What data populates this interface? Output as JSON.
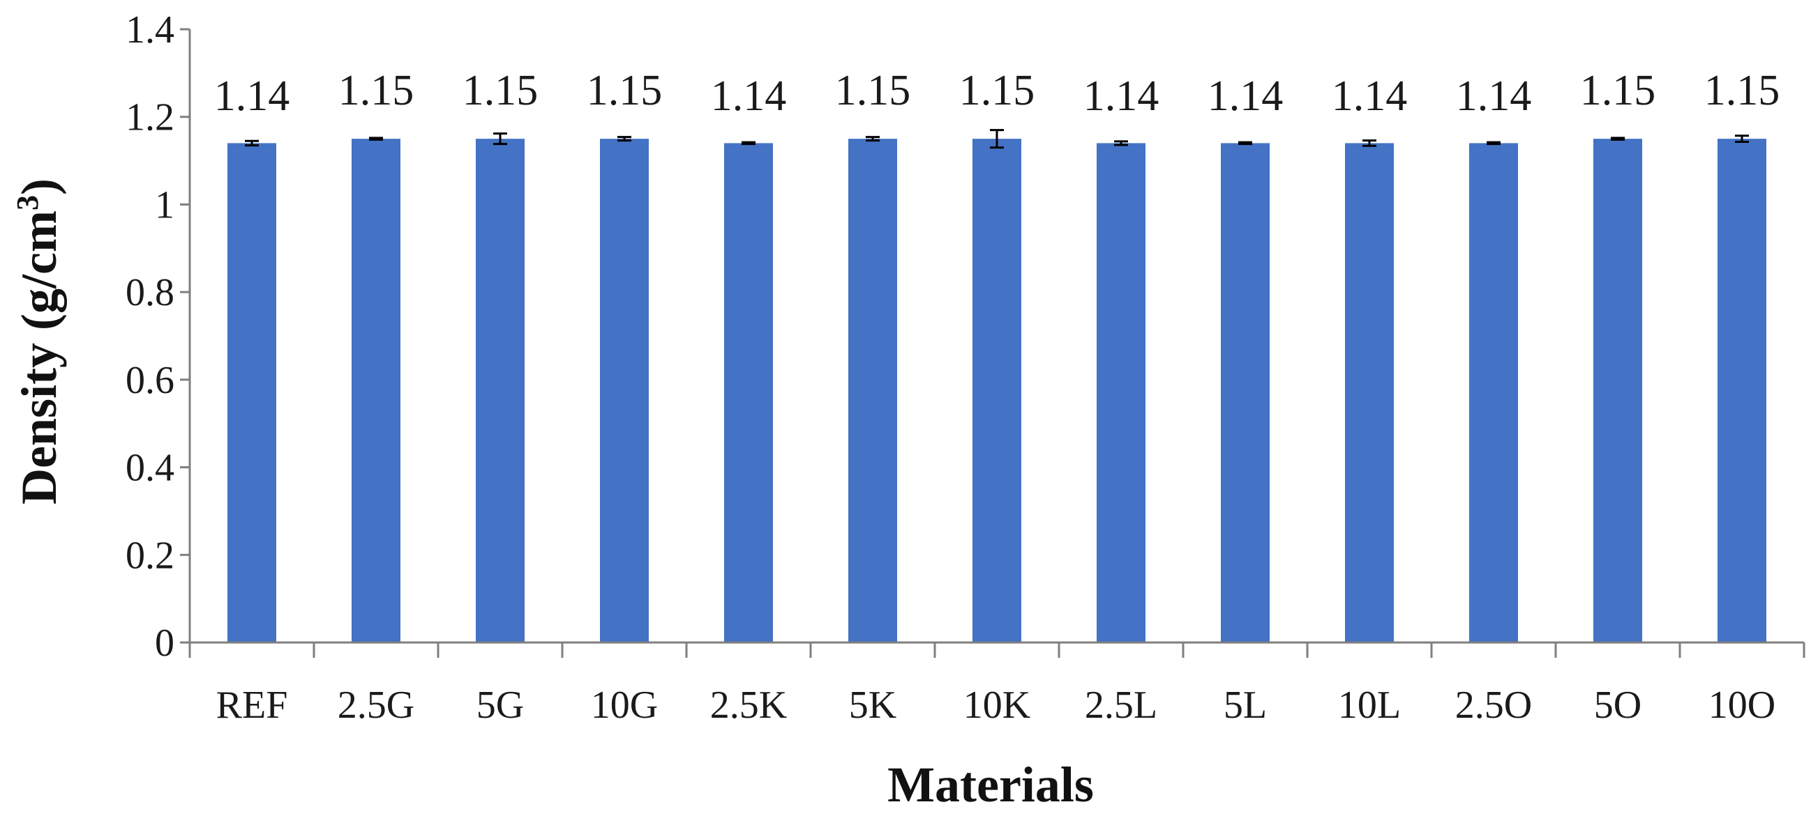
{
  "chart_data": {
    "type": "bar",
    "categories": [
      "REF",
      "2.5G",
      "5G",
      "10G",
      "2.5K",
      "5K",
      "10K",
      "2.5L",
      "5L",
      "10L",
      "2.5O",
      "5O",
      "10O"
    ],
    "values": [
      1.14,
      1.15,
      1.15,
      1.15,
      1.14,
      1.15,
      1.15,
      1.14,
      1.14,
      1.14,
      1.14,
      1.15,
      1.15
    ],
    "data_labels": [
      "1.14",
      "1.15",
      "1.15",
      "1.15",
      "1.14",
      "1.15",
      "1.15",
      "1.14",
      "1.14",
      "1.14",
      "1.14",
      "1.15",
      "1.15"
    ],
    "error": [
      0.005,
      0.002,
      0.012,
      0.004,
      0.002,
      0.004,
      0.02,
      0.004,
      0.002,
      0.006,
      0.002,
      0.002,
      0.007
    ],
    "xlabel": "Materials",
    "ylabel_main": "Density (g/cm",
    "ylabel_sup": "3",
    "ylabel_close": ")",
    "ylim": [
      0,
      1.4
    ],
    "yticks": [
      0,
      0.2,
      0.4,
      0.6,
      0.8,
      1,
      1.2,
      1.4
    ],
    "ytick_labels": [
      "0",
      "0.2",
      "0.4",
      "0.6",
      "0.8",
      "1",
      "1.2",
      "1.4"
    ],
    "grid": false,
    "legend": "none",
    "bar_color": "#4472C4",
    "axis_color": "#7F7F7F",
    "error_bar_color": "#000000"
  }
}
